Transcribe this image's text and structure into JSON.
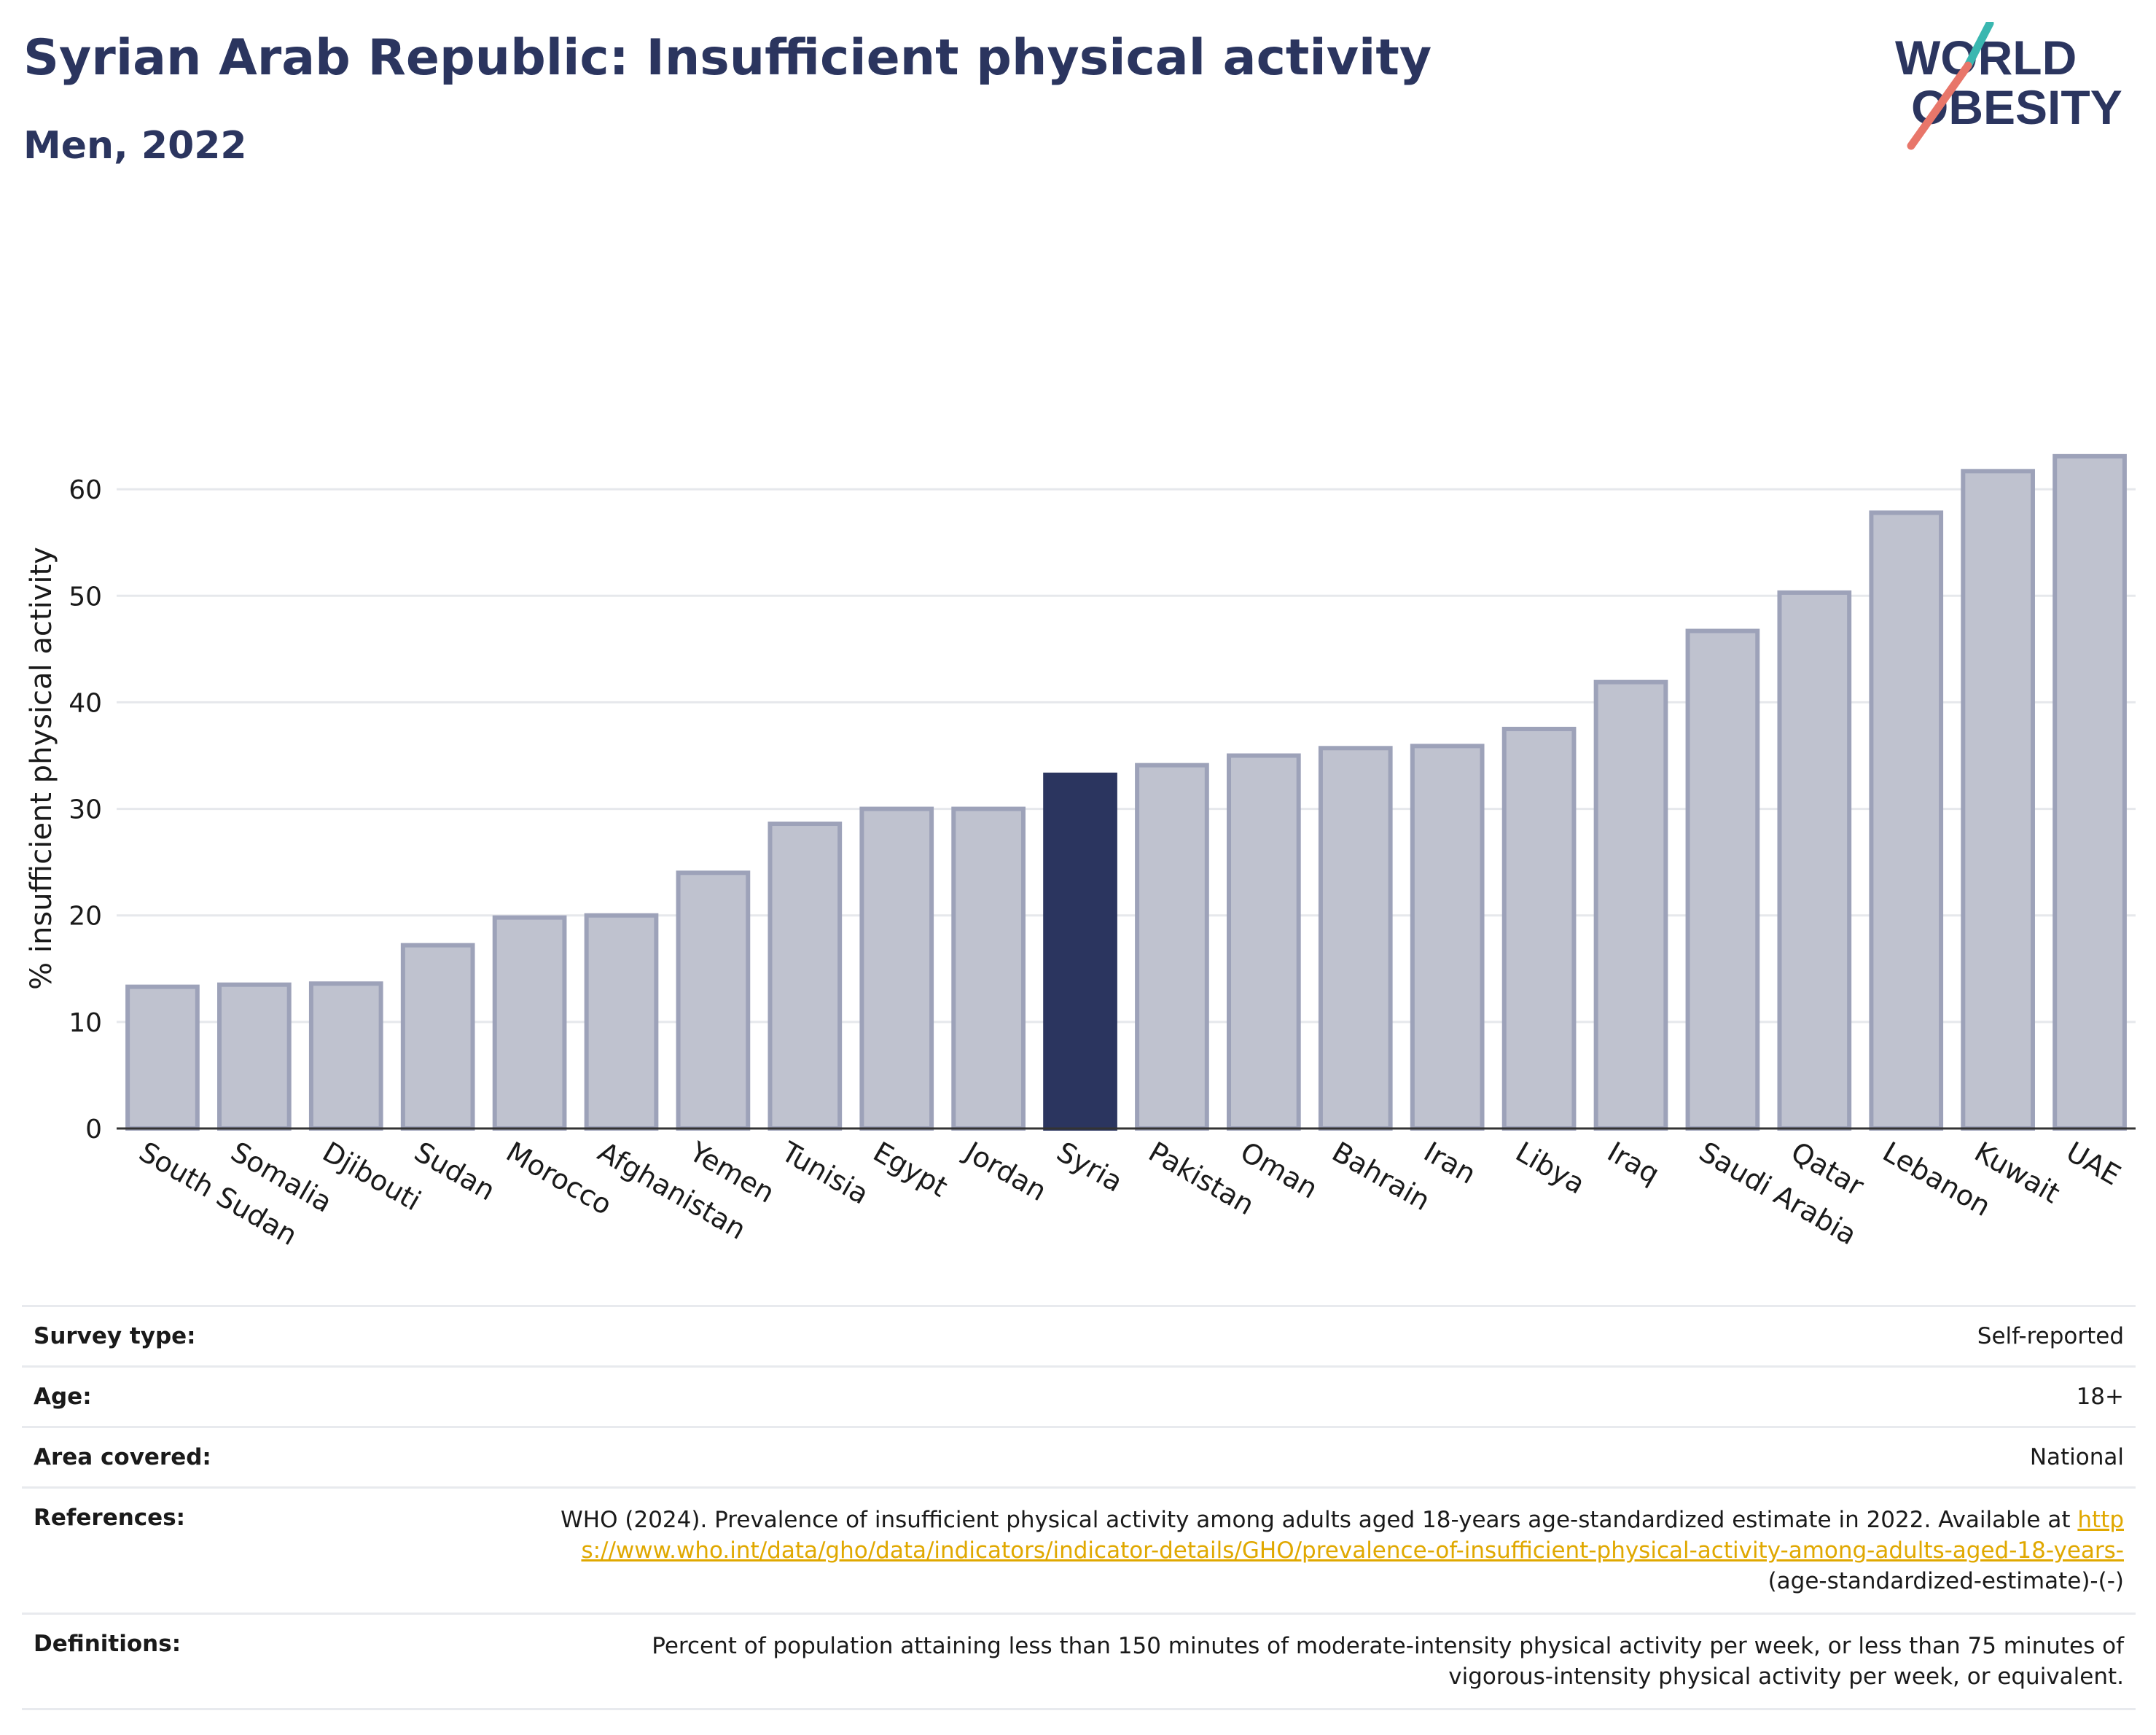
{
  "header": {
    "title": "Syrian Arab Republic: Insufficient physical activity",
    "subtitle": "Men, 2022"
  },
  "logo": {
    "line1": "WORLD",
    "line2": "OBESITY",
    "name": "world-obesity-logo"
  },
  "colors": {
    "highlight": "#2b355f",
    "bar_fill": "#bfc2cf",
    "bar_stroke": "#9da2b9",
    "text_dark": "#2b355f",
    "link": "#e0a800",
    "logo_teal": "#3ab7b0",
    "logo_coral": "#e8766a"
  },
  "chart_data": {
    "type": "bar",
    "title": "Syrian Arab Republic: Insufficient physical activity",
    "ylabel": "% insufficient physical activity",
    "xlabel": "",
    "ylim": [
      0,
      63.5
    ],
    "yticks": [
      0,
      10,
      20,
      30,
      40,
      50,
      60
    ],
    "grid": true,
    "highlight": "Syria",
    "categories": [
      "South Sudan",
      "Somalia",
      "Djibouti",
      "Sudan",
      "Morocco",
      "Afghanistan",
      "Yemen",
      "Tunisia",
      "Egypt",
      "Jordan",
      "Syria",
      "Pakistan",
      "Oman",
      "Bahrain",
      "Iran",
      "Libya",
      "Iraq",
      "Saudi Arabia",
      "Qatar",
      "Lebanon",
      "Kuwait",
      "UAE"
    ],
    "values": [
      13.3,
      13.5,
      13.6,
      17.2,
      19.8,
      20.0,
      24.0,
      28.6,
      30.0,
      30.0,
      33.2,
      34.1,
      35.0,
      35.7,
      35.9,
      37.5,
      41.9,
      46.7,
      50.3,
      57.8,
      61.7,
      63.1
    ]
  },
  "info_table": {
    "survey_type": {
      "label": "Survey type:",
      "value": "Self-reported"
    },
    "age": {
      "label": "Age:",
      "value": "18+"
    },
    "area": {
      "label": "Area covered:",
      "value": "National"
    },
    "references": {
      "label": "References:",
      "text_before": "WHO (2024). Prevalence of insufficient physical activity among adults aged 18-years age-standardized estimate in 2022. Available at",
      "link": "https://www.who.int/data/gho/data/indicators/indicator-details/GHO/prevalence-of-insufficient-physical-activity-among-adults-aged-18-years-",
      "text_after": "(age-standardized-estimate)-(-)"
    },
    "definitions": {
      "label": "Definitions:",
      "value": "Percent of population attaining less than 150 minutes of moderate-intensity physical activity per week, or less than 75 minutes of vigorous-intensity physical activity per week, or equivalent."
    }
  }
}
